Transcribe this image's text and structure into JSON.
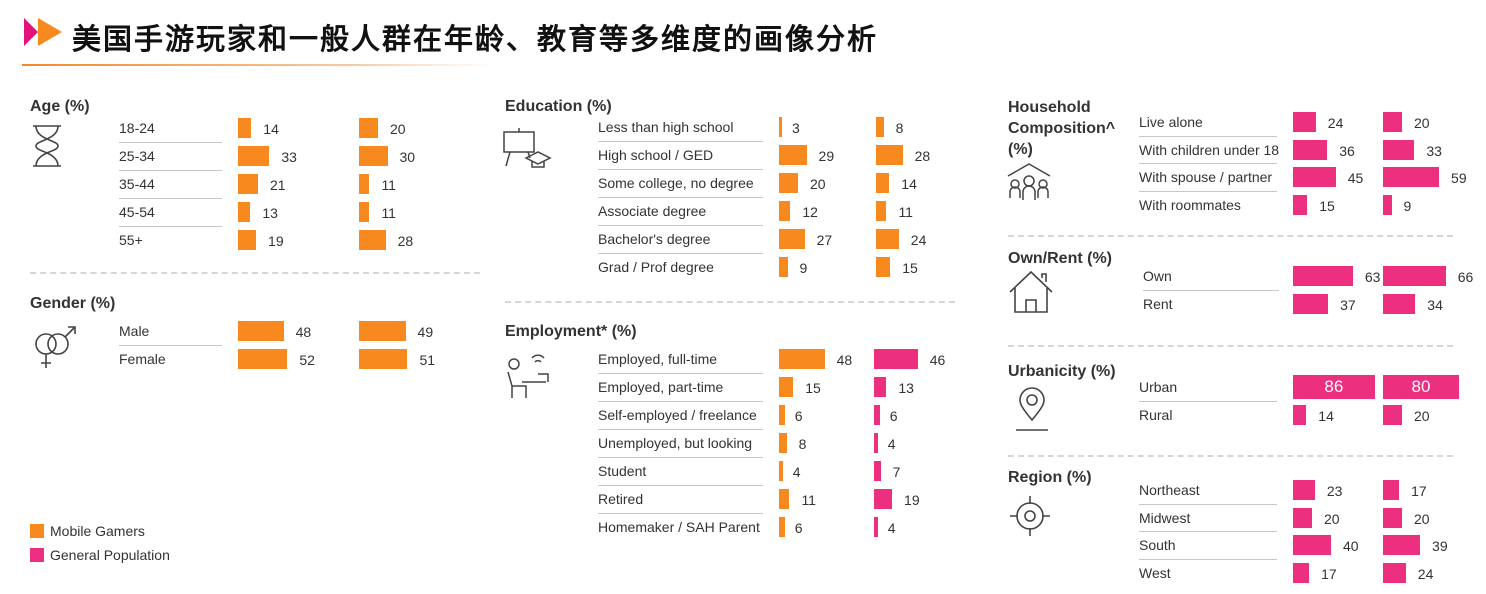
{
  "title": "美国手游玩家和一般人群在年龄、教育等多维度的画像分析",
  "colors": {
    "orange": "#f7891f",
    "pink": "#ec2f7f"
  },
  "legend": [
    {
      "label": "Mobile Gamers",
      "color": "#f7891f"
    },
    {
      "label": "General Population",
      "color": "#ec2f7f"
    }
  ],
  "chart_data": {
    "type": "bar",
    "groups": [
      {
        "title": "Age (%)",
        "icon": "hourglass-icon",
        "colors": [
          "#f7891f",
          "#f7891f"
        ],
        "categories": [
          "18-24",
          "25-34",
          "35-44",
          "45-54",
          "55+"
        ],
        "series": [
          {
            "values": [
              14,
              33,
              21,
              13,
              19
            ]
          },
          {
            "values": [
              20,
              30,
              11,
              11,
              28
            ]
          }
        ]
      },
      {
        "title": "Gender (%)",
        "icon": "gender-icon",
        "colors": [
          "#f7891f",
          "#f7891f"
        ],
        "categories": [
          "Male",
          "Female"
        ],
        "series": [
          {
            "values": [
              48,
              52
            ]
          },
          {
            "values": [
              49,
              51
            ]
          }
        ]
      },
      {
        "title": "Education (%)",
        "icon": "graduation-icon",
        "colors": [
          "#f7891f",
          "#f7891f"
        ],
        "categories": [
          "Less than high school",
          "High school / GED",
          "Some college, no degree",
          "Associate degree",
          "Bachelor's degree",
          "Grad / Prof degree"
        ],
        "series": [
          {
            "values": [
              3,
              29,
              20,
              12,
              27,
              9
            ]
          },
          {
            "values": [
              8,
              28,
              14,
              11,
              24,
              15
            ]
          }
        ]
      },
      {
        "title": "Employment* (%)",
        "icon": "worker-icon",
        "colors": [
          "#f7891f",
          "#ec2f7f"
        ],
        "categories": [
          "Employed, full-time",
          "Employed, part-time",
          "Self-employed / freelance",
          "Unemployed, but looking",
          "Student",
          "Retired",
          "Homemaker / SAH Parent"
        ],
        "series": [
          {
            "values": [
              48,
              15,
              6,
              8,
              4,
              11,
              6
            ]
          },
          {
            "values": [
              46,
              13,
              6,
              4,
              7,
              19,
              4
            ]
          }
        ]
      },
      {
        "title": "Household Composition^ (%)",
        "icon": "family-home-icon",
        "colors": [
          "#ec2f7f",
          "#ec2f7f"
        ],
        "categories": [
          "Live alone",
          "With children under 18",
          "With spouse / partner",
          "With roommates"
        ],
        "series": [
          {
            "values": [
              24,
              36,
              45,
              15
            ]
          },
          {
            "values": [
              20,
              33,
              59,
              9
            ]
          }
        ]
      },
      {
        "title": "Own/Rent (%)",
        "icon": "house-icon",
        "colors": [
          "#ec2f7f",
          "#ec2f7f"
        ],
        "categories": [
          "Own",
          "Rent"
        ],
        "series": [
          {
            "values": [
              63,
              37
            ]
          },
          {
            "values": [
              66,
              34
            ]
          }
        ]
      },
      {
        "title": "Urbanicity (%)",
        "icon": "location-pin-icon",
        "colors": [
          "#ec2f7f",
          "#ec2f7f"
        ],
        "categories": [
          "Urban",
          "Rural"
        ],
        "series": [
          {
            "values": [
              86,
              14
            ]
          },
          {
            "values": [
              80,
              20
            ]
          }
        ]
      },
      {
        "title": "Region (%)",
        "icon": "target-icon",
        "colors": [
          "#ec2f7f",
          "#ec2f7f"
        ],
        "categories": [
          "Northeast",
          "Midwest",
          "South",
          "West"
        ],
        "series": [
          {
            "values": [
              23,
              20,
              40,
              17
            ]
          },
          {
            "values": [
              17,
              20,
              39,
              24
            ]
          }
        ]
      }
    ]
  }
}
